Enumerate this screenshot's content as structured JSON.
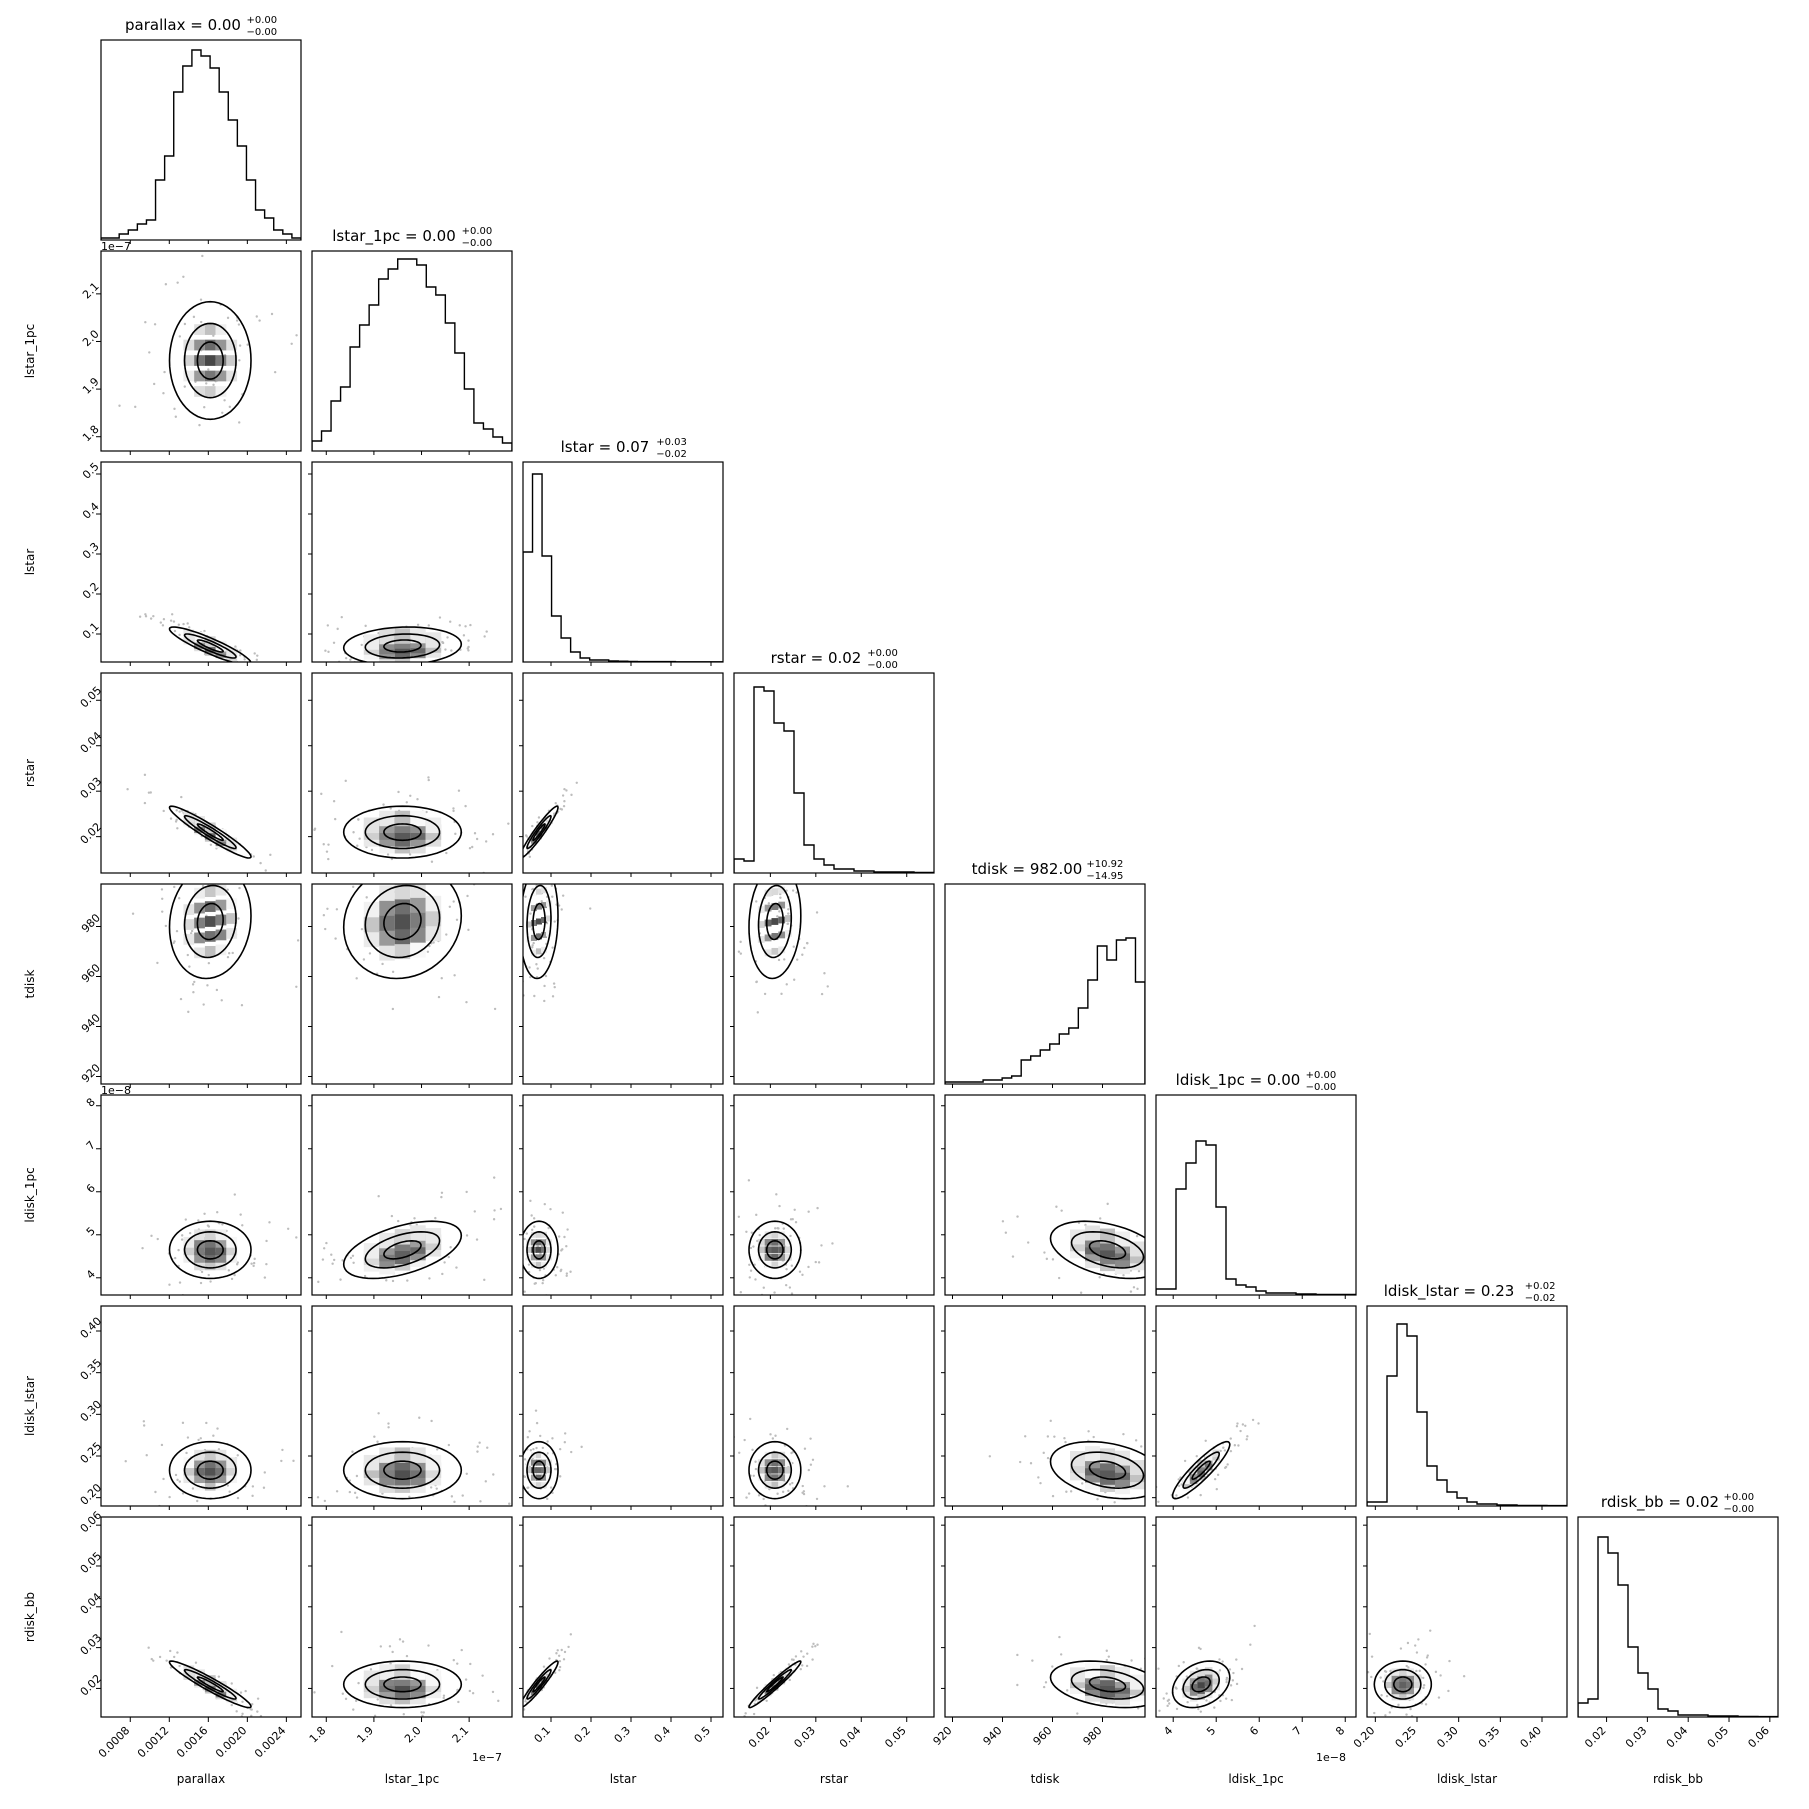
{
  "chart_data": {
    "type": "corner",
    "parameters": [
      {
        "name": "parallax",
        "xlabel": "parallax",
        "ylabel": "",
        "title": "parallax = 0.00",
        "plus": "+0.00",
        "minus": "−0.00",
        "range": [
          0.0005,
          0.00255
        ],
        "median": 0.00162,
        "sigma": 0.00022,
        "ticks": [
          0.0008,
          0.0012,
          0.0016,
          0.002,
          0.0024
        ],
        "ticklabels": [
          "0.0008",
          "0.0012",
          "0.0016",
          "0.0020",
          "0.0024"
        ],
        "offset": "",
        "hist": [
          0.01,
          0.01,
          0.03,
          0.05,
          0.08,
          0.1,
          0.3,
          0.42,
          0.74,
          0.87,
          0.95,
          0.92,
          0.86,
          0.74,
          0.6,
          0.47,
          0.3,
          0.15,
          0.11,
          0.05,
          0.03,
          0.01
        ]
      },
      {
        "name": "lstar_1pc",
        "xlabel": "lstar_1pc",
        "ylabel": "lstar_1pc",
        "title": "lstar_1pc = 0.00",
        "plus": "+0.00",
        "minus": "−0.00",
        "range": [
          1.77,
          2.19
        ],
        "median": 1.96,
        "sigma": 0.065,
        "ticks": [
          1.8,
          1.9,
          2.0,
          2.1
        ],
        "ticklabels": [
          "1.8",
          "1.9",
          "2.0",
          "2.1"
        ],
        "offset": "1e−7",
        "hist": [
          0.05,
          0.1,
          0.25,
          0.32,
          0.52,
          0.63,
          0.73,
          0.86,
          0.91,
          0.96,
          0.96,
          0.93,
          0.82,
          0.78,
          0.64,
          0.49,
          0.31,
          0.14,
          0.11,
          0.07,
          0.04
        ]
      },
      {
        "name": "lstar",
        "xlabel": "lstar",
        "ylabel": "lstar",
        "title": "lstar = 0.07",
        "plus": "+0.03",
        "minus": "−0.02",
        "range": [
          0.03,
          0.53
        ],
        "median": 0.07,
        "sigma": 0.025,
        "ticks": [
          0.1,
          0.2,
          0.3,
          0.4,
          0.5
        ],
        "ticklabels": [
          "0.1",
          "0.2",
          "0.3",
          "0.4",
          "0.5"
        ],
        "offset": "",
        "hist": [
          0.55,
          0.94,
          0.53,
          0.23,
          0.12,
          0.05,
          0.02,
          0.01,
          0.01,
          0.005,
          0.004,
          0.003,
          0.002,
          0.002,
          0.002,
          0.002,
          0.001,
          0.001,
          0.001,
          0.001,
          0.001
        ]
      },
      {
        "name": "rstar",
        "xlabel": "rstar",
        "ylabel": "rstar",
        "title": "rstar = 0.02",
        "plus": "+0.00",
        "minus": "−0.00",
        "range": [
          0.012,
          0.056
        ],
        "median": 0.021,
        "sigma": 0.003,
        "ticks": [
          0.02,
          0.03,
          0.04,
          0.05
        ],
        "ticklabels": [
          "0.02",
          "0.03",
          "0.04",
          "0.05"
        ],
        "offset": "",
        "hist": [
          0.07,
          0.06,
          0.93,
          0.91,
          0.75,
          0.71,
          0.4,
          0.14,
          0.07,
          0.04,
          0.02,
          0.02,
          0.01,
          0.01,
          0.005,
          0.005,
          0.005,
          0.005,
          0.003,
          0.003
        ]
      },
      {
        "name": "tdisk",
        "xlabel": "tdisk",
        "ylabel": "tdisk",
        "title": "tdisk = 982.00",
        "plus": "+10.92",
        "minus": "−14.95",
        "range": [
          917,
          997
        ],
        "median": 982,
        "sigma": 12,
        "ticks": [
          920,
          940,
          960,
          980
        ],
        "ticklabels": [
          "920",
          "940",
          "960",
          "980"
        ],
        "offset": "",
        "hist": [
          0.01,
          0.01,
          0.01,
          0.01,
          0.02,
          0.02,
          0.03,
          0.04,
          0.12,
          0.14,
          0.17,
          0.2,
          0.25,
          0.28,
          0.38,
          0.52,
          0.69,
          0.62,
          0.72,
          0.73,
          0.51
        ]
      },
      {
        "name": "ldisk_1pc",
        "xlabel": "ldisk_1pc",
        "ylabel": "ldisk_1pc",
        "title": "ldisk_1pc = 0.00",
        "plus": "+0.00",
        "minus": "−0.00",
        "range": [
          3.6,
          8.25
        ],
        "median": 4.65,
        "sigma": 0.35,
        "ticks": [
          4,
          5,
          6,
          7,
          8
        ],
        "ticklabels": [
          "4",
          "5",
          "6",
          "7",
          "8"
        ],
        "offset": "1e−8",
        "hist": [
          0.03,
          0.03,
          0.53,
          0.66,
          0.77,
          0.75,
          0.44,
          0.08,
          0.05,
          0.04,
          0.02,
          0.01,
          0.01,
          0.01,
          0.005,
          0.005,
          0.003,
          0.003,
          0.003,
          0.003
        ]
      },
      {
        "name": "ldisk_lstar",
        "xlabel": "ldisk_lstar",
        "ylabel": "ldisk_lstar",
        "title": "ldisk_lstar = 0.23",
        "plus": "+0.02",
        "minus": "−0.02",
        "range": [
          0.19,
          0.43
        ],
        "median": 0.233,
        "sigma": 0.018,
        "ticks": [
          0.2,
          0.25,
          0.3,
          0.35,
          0.4
        ],
        "ticklabels": [
          "0.20",
          "0.25",
          "0.30",
          "0.35",
          "0.40"
        ],
        "offset": "",
        "hist": [
          0.02,
          0.02,
          0.65,
          0.91,
          0.85,
          0.47,
          0.2,
          0.13,
          0.07,
          0.04,
          0.02,
          0.01,
          0.01,
          0.005,
          0.005,
          0.003,
          0.003,
          0.003,
          0.002,
          0.002
        ]
      },
      {
        "name": "rdisk_bb",
        "xlabel": "rdisk_bb",
        "ylabel": "rdisk_bb",
        "title": "rdisk_bb = 0.02",
        "plus": "+0.00",
        "minus": "−0.00",
        "range": [
          0.013,
          0.062
        ],
        "median": 0.021,
        "sigma": 0.003,
        "ticks": [
          0.02,
          0.03,
          0.04,
          0.05,
          0.06
        ],
        "ticklabels": [
          "0.02",
          "0.03",
          "0.04",
          "0.05",
          "0.06"
        ],
        "offset": "",
        "hist": [
          0.07,
          0.09,
          0.9,
          0.82,
          0.66,
          0.35,
          0.22,
          0.14,
          0.04,
          0.03,
          0.01,
          0.01,
          0.01,
          0.005,
          0.005,
          0.005,
          0.003,
          0.003,
          0.002,
          0.002
        ]
      }
    ],
    "left_ylabel_params": [
      1,
      2,
      3,
      4,
      5,
      6,
      7
    ],
    "left_offset_labels": {
      "1": "1e−7",
      "5": "1e−8"
    },
    "correlations": {
      "2-0": -0.9,
      "3-0": -0.95,
      "3-2": 0.95,
      "4-0": 0.1,
      "4-1": 0.1,
      "4-2": 0.1,
      "4-3": 0.1,
      "5-0": 0.0,
      "5-1": 0.5,
      "5-2": 0.0,
      "5-3": 0.0,
      "5-4": -0.4,
      "6-0": 0.0,
      "6-1": 0.0,
      "6-2": 0.0,
      "6-3": 0.0,
      "6-4": -0.3,
      "6-5": 0.9,
      "7-0": -0.95,
      "7-1": 0.0,
      "7-2": 0.95,
      "7-3": 0.97,
      "7-4": -0.3,
      "7-5": 0.3,
      "7-6": 0.0,
      "2-1": 0.1,
      "3-1": 0.0,
      "1-0": 0.0
    }
  }
}
